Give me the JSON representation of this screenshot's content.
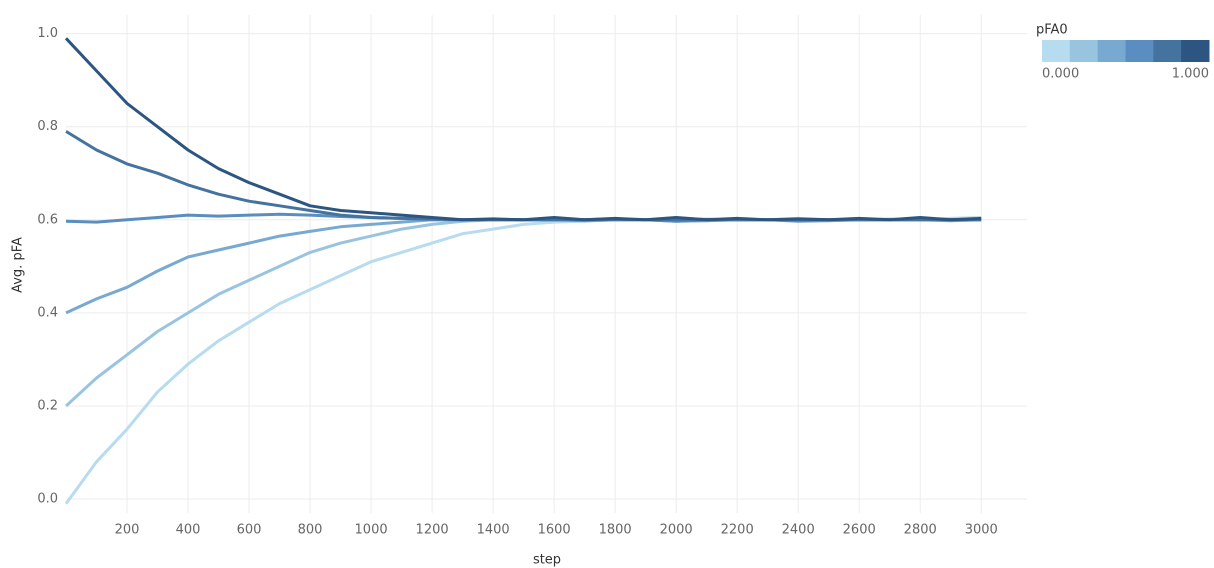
{
  "chart_data": {
    "type": "line",
    "x_label": "step",
    "y_label": "Avg. pFA",
    "x": [
      0,
      100,
      200,
      300,
      400,
      500,
      600,
      700,
      800,
      900,
      1000,
      1100,
      1200,
      1300,
      1400,
      1500,
      1600,
      1700,
      1800,
      1900,
      2000,
      2100,
      2200,
      2300,
      2400,
      2500,
      2600,
      2700,
      2800,
      2900,
      3000
    ],
    "series": [
      {
        "color": "#b7dbef",
        "values": [
          -0.01,
          0.08,
          0.15,
          0.23,
          0.29,
          0.34,
          0.38,
          0.42,
          0.45,
          0.48,
          0.51,
          0.53,
          0.55,
          0.57,
          0.58,
          0.59,
          0.595,
          0.597,
          0.6,
          0.6,
          0.6,
          0.602,
          0.6,
          0.6,
          0.603,
          0.6,
          0.6,
          0.602,
          0.6,
          0.603,
          0.605
        ]
      },
      {
        "color": "#99c4e0",
        "values": [
          0.2,
          0.26,
          0.31,
          0.36,
          0.4,
          0.44,
          0.47,
          0.5,
          0.53,
          0.55,
          0.565,
          0.58,
          0.59,
          0.597,
          0.6,
          0.6,
          0.6,
          0.6,
          0.602,
          0.6,
          0.6,
          0.6,
          0.6,
          0.6,
          0.6,
          0.6,
          0.6,
          0.6,
          0.6,
          0.6,
          0.6
        ]
      },
      {
        "color": "#78a9d0",
        "values": [
          0.4,
          0.43,
          0.455,
          0.49,
          0.52,
          0.535,
          0.55,
          0.565,
          0.575,
          0.585,
          0.59,
          0.595,
          0.6,
          0.6,
          0.6,
          0.6,
          0.6,
          0.598,
          0.6,
          0.6,
          0.597,
          0.598,
          0.6,
          0.6,
          0.597,
          0.598,
          0.6,
          0.6,
          0.6,
          0.598,
          0.6
        ]
      },
      {
        "color": "#5b8ec0",
        "values": [
          0.597,
          0.595,
          0.6,
          0.605,
          0.61,
          0.608,
          0.61,
          0.612,
          0.61,
          0.607,
          0.605,
          0.603,
          0.6,
          0.6,
          0.6,
          0.6,
          0.6,
          0.6,
          0.602,
          0.6,
          0.597,
          0.6,
          0.6,
          0.6,
          0.598,
          0.6,
          0.6,
          0.6,
          0.6,
          0.6,
          0.6
        ]
      },
      {
        "color": "#45739f",
        "values": [
          0.79,
          0.75,
          0.72,
          0.7,
          0.675,
          0.655,
          0.64,
          0.63,
          0.62,
          0.61,
          0.605,
          0.603,
          0.602,
          0.6,
          0.6,
          0.6,
          0.6,
          0.6,
          0.6,
          0.6,
          0.6,
          0.6,
          0.6,
          0.6,
          0.6,
          0.6,
          0.6,
          0.6,
          0.6,
          0.6,
          0.6
        ]
      },
      {
        "color": "#2c5581",
        "values": [
          0.99,
          0.92,
          0.85,
          0.8,
          0.75,
          0.71,
          0.68,
          0.655,
          0.63,
          0.62,
          0.615,
          0.61,
          0.605,
          0.6,
          0.602,
          0.6,
          0.605,
          0.6,
          0.603,
          0.6,
          0.605,
          0.6,
          0.603,
          0.6,
          0.602,
          0.6,
          0.603,
          0.6,
          0.605,
          0.6,
          0.603
        ]
      }
    ],
    "xlim": [
      0,
      3150
    ],
    "ylim": [
      -0.03,
      1.04
    ],
    "xticks": [
      200,
      400,
      600,
      800,
      1000,
      1200,
      1400,
      1600,
      1800,
      2000,
      2200,
      2400,
      2600,
      2800,
      3000
    ],
    "yticks": [
      {
        "value": 0,
        "label": "0.0"
      },
      0.2,
      0.4,
      0.6,
      0.8,
      {
        "value": 1,
        "label": "1.0"
      }
    ],
    "grid": true,
    "legend": {
      "title": "pFA0",
      "min": {
        "value": 0,
        "label": "0.000"
      },
      "max": {
        "value": 1,
        "label": "1.000"
      }
    }
  }
}
